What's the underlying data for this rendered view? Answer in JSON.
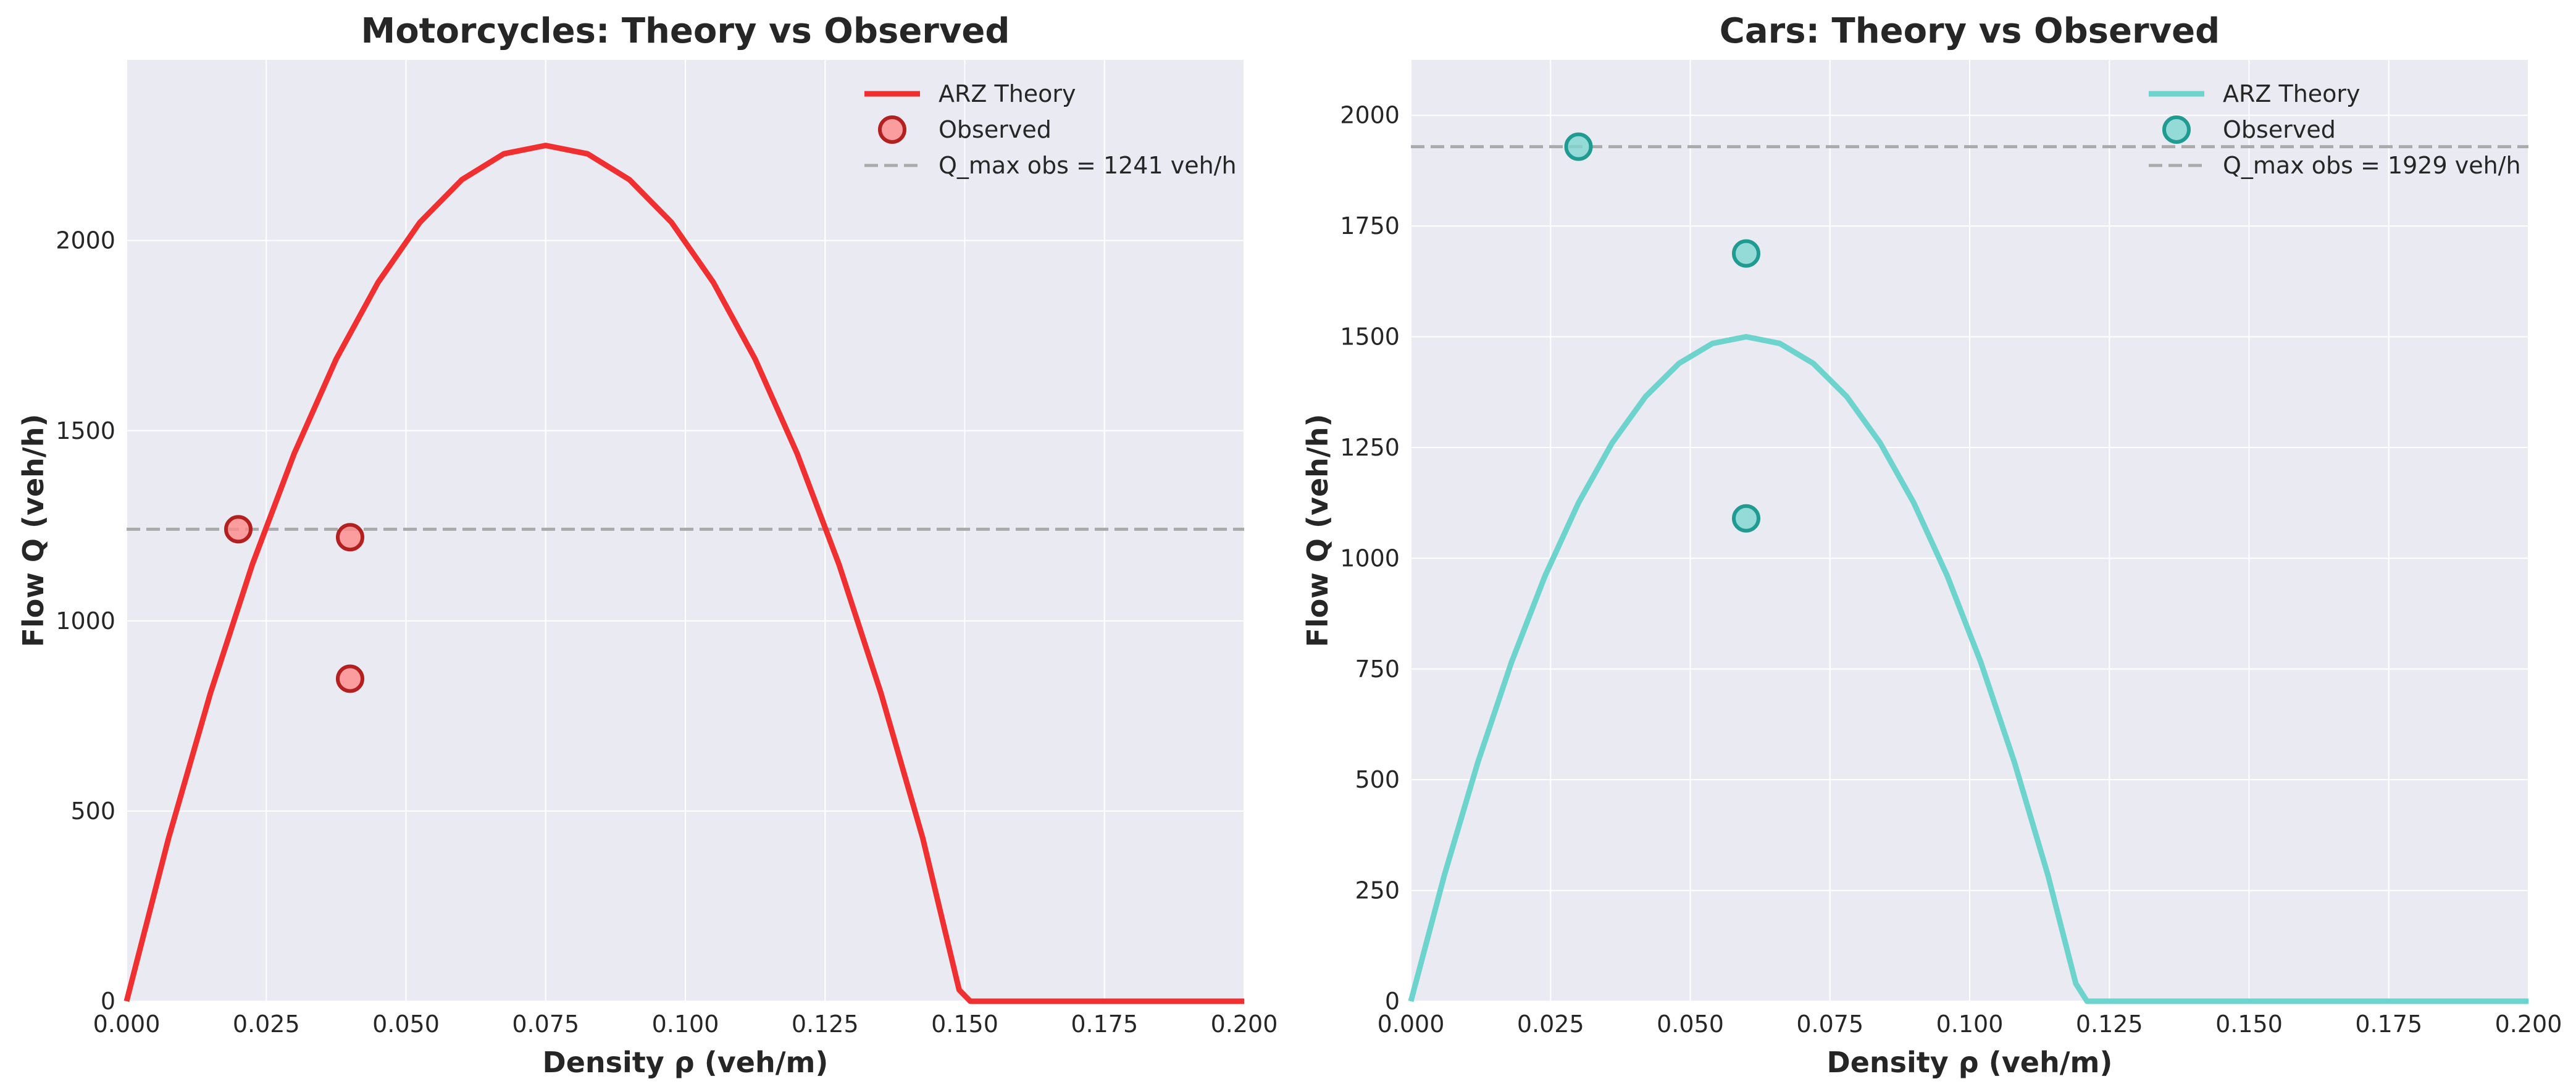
{
  "colors": {
    "background": "#eaeaf2",
    "grid": "#ffffff",
    "motorcycle_line": "#f03030",
    "motorcycle_marker_fill": "#ff8a8a",
    "motorcycle_marker_edge": "#b32020",
    "car_line": "#6dd3cd",
    "car_marker_fill": "#7ed6cf",
    "car_marker_edge": "#1f9b91",
    "reference_line": "#aaaaaa"
  },
  "chart_data": [
    {
      "type": "line",
      "title": "Motorcycles: Theory vs Observed",
      "xlabel": "Density ρ (veh/m)",
      "ylabel": "Flow Q (veh/h)",
      "xlim": [
        0,
        0.2
      ],
      "ylim": [
        0,
        2475
      ],
      "x_ticks": [
        "0.000",
        "0.025",
        "0.050",
        "0.075",
        "0.100",
        "0.125",
        "0.150",
        "0.175",
        "0.200"
      ],
      "y_ticks": [
        "0",
        "500",
        "1000",
        "1500",
        "2000"
      ],
      "grid": true,
      "legend": "top-right",
      "series": [
        {
          "name": "ARZ Theory",
          "kind": "line",
          "x": [
            0,
            0.0075,
            0.015,
            0.0225,
            0.03,
            0.0375,
            0.045,
            0.0525,
            0.06,
            0.0675,
            0.075,
            0.0825,
            0.09,
            0.0975,
            0.105,
            0.1125,
            0.12,
            0.1275,
            0.135,
            0.1425,
            0.149,
            0.151,
            0.16,
            0.17,
            0.18,
            0.19,
            0.2
          ],
          "y": [
            0,
            428,
            810,
            1148,
            1440,
            1688,
            1890,
            2048,
            2160,
            2228,
            2250,
            2228,
            2160,
            2048,
            1890,
            1688,
            1440,
            1148,
            810,
            428,
            30,
            0,
            0,
            0,
            0,
            0,
            0
          ]
        },
        {
          "name": "Observed",
          "kind": "scatter",
          "x": [
            0.02,
            0.04,
            0.04
          ],
          "y": [
            1241,
            1220,
            848
          ]
        },
        {
          "name": "Q_max obs = 1241 veh/h",
          "kind": "hline",
          "y": 1241
        }
      ]
    },
    {
      "type": "line",
      "title": "Cars: Theory vs Observed",
      "xlabel": "Density ρ (veh/m)",
      "ylabel": "Flow Q (veh/h)",
      "xlim": [
        0,
        0.2
      ],
      "ylim": [
        0,
        2125
      ],
      "x_ticks": [
        "0.000",
        "0.025",
        "0.050",
        "0.075",
        "0.100",
        "0.125",
        "0.150",
        "0.175",
        "0.200"
      ],
      "y_ticks": [
        "0",
        "250",
        "500",
        "750",
        "1000",
        "1250",
        "1500",
        "1750",
        "2000"
      ],
      "grid": true,
      "legend": "top-right",
      "series": [
        {
          "name": "ARZ Theory",
          "kind": "line",
          "x": [
            0,
            0.006,
            0.012,
            0.018,
            0.024,
            0.03,
            0.036,
            0.042,
            0.048,
            0.054,
            0.06,
            0.066,
            0.072,
            0.078,
            0.084,
            0.09,
            0.096,
            0.102,
            0.108,
            0.114,
            0.119,
            0.121,
            0.13,
            0.14,
            0.15,
            0.16,
            0.17,
            0.18,
            0.19,
            0.2
          ],
          "y": [
            0,
            285,
            540,
            765,
            960,
            1125,
            1260,
            1365,
            1440,
            1485,
            1500,
            1485,
            1440,
            1365,
            1260,
            1125,
            960,
            765,
            540,
            285,
            40,
            0,
            0,
            0,
            0,
            0,
            0,
            0,
            0,
            0
          ]
        },
        {
          "name": "Observed",
          "kind": "scatter",
          "x": [
            0.03,
            0.06,
            0.06
          ],
          "y": [
            1929,
            1688,
            1090
          ]
        },
        {
          "name": "Q_max obs = 1929 veh/h",
          "kind": "hline",
          "y": 1929
        }
      ]
    }
  ]
}
